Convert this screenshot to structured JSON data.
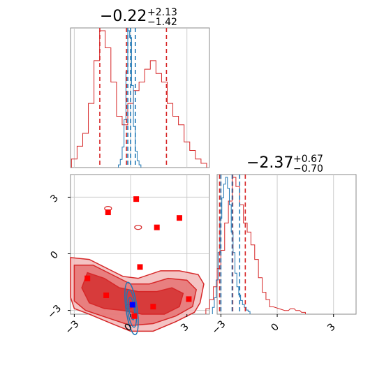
{
  "chart_data": {
    "type": "corner",
    "params": [
      {
        "title_value": "−0.22",
        "title_plus": "+2.13",
        "title_minus": "−1.42"
      },
      {
        "title_value": "−2.37",
        "title_plus": "+0.67",
        "title_minus": "−0.70"
      }
    ],
    "axis_range": [
      -3.2,
      4.2
    ],
    "tick_values": [
      -3,
      0,
      3
    ],
    "tick_labels": [
      "−3",
      "0",
      "3"
    ],
    "grid": true,
    "colors": {
      "red": "#d62728",
      "blue": "#1f77b4",
      "grid": "#cccccc",
      "frame": "#888888"
    },
    "diag1": {
      "red_hist": {
        "x": [
          -3.0,
          -2.7,
          -2.4,
          -2.1,
          -1.8,
          -1.5,
          -1.2,
          -0.9,
          -0.6,
          -0.3,
          0.0,
          0.3,
          0.6,
          0.9,
          1.2,
          1.5,
          1.8,
          2.1,
          2.4,
          2.7,
          3.0,
          3.3,
          3.6,
          3.9
        ],
        "y": [
          0.02,
          0.05,
          0.08,
          0.15,
          0.25,
          0.32,
          0.28,
          0.2,
          0.12,
          0.1,
          0.15,
          0.18,
          0.2,
          0.23,
          0.25,
          0.22,
          0.2,
          0.15,
          0.12,
          0.1,
          0.06,
          0.04,
          0.02,
          0.01
        ]
      },
      "blue_hist": {
        "x": [
          -0.6,
          -0.5,
          -0.4,
          -0.3,
          -0.2,
          -0.1,
          0.0,
          0.1,
          0.2,
          0.3,
          0.4,
          0.5
        ],
        "y": [
          0.02,
          0.06,
          0.15,
          0.35,
          0.7,
          1.0,
          0.95,
          0.6,
          0.3,
          0.12,
          0.05,
          0.02
        ]
      },
      "red_quantiles": [
        -1.64,
        -0.22,
        1.91
      ],
      "blue_quantiles": [
        -0.15,
        0.0,
        0.25
      ]
    },
    "diag2": {
      "red_hist": {
        "x": [
          -3.7,
          -3.5,
          -3.3,
          -3.1,
          -2.9,
          -2.7,
          -2.5,
          -2.3,
          -2.1,
          -1.9,
          -1.7,
          -1.5,
          -1.3,
          -1.1,
          -0.9,
          -0.7,
          -0.5,
          -0.3,
          0.5,
          0.8,
          1.1,
          1.4
        ],
        "y": [
          0.03,
          0.08,
          0.15,
          0.25,
          0.35,
          0.5,
          0.62,
          0.75,
          0.7,
          0.6,
          0.5,
          0.45,
          0.38,
          0.3,
          0.2,
          0.12,
          0.08,
          0.04,
          0.02,
          0.03,
          0.02,
          0.01
        ]
      },
      "blue_hist": {
        "x": [
          -3.4,
          -3.3,
          -3.2,
          -3.1,
          -3.0,
          -2.9,
          -2.8,
          -2.7,
          -2.6,
          -2.5,
          -2.4,
          -2.3,
          -2.2,
          -2.1,
          -2.0,
          -1.9,
          -1.8,
          -1.7,
          -1.6,
          -1.5
        ],
        "y": [
          0.05,
          0.12,
          0.25,
          0.45,
          0.7,
          0.85,
          0.95,
          1.0,
          0.92,
          0.8,
          0.6,
          0.45,
          0.3,
          0.2,
          0.14,
          0.1,
          0.07,
          0.05,
          0.03,
          0.02
        ]
      },
      "red_quantiles": [
        -3.07,
        -2.37,
        -1.7
      ],
      "blue_quantiles": [
        -3.0,
        -2.4,
        -2.0
      ]
    },
    "scatter": {
      "red_points": [
        [
          -1.2,
          2.2
        ],
        [
          0.3,
          2.9
        ],
        [
          2.6,
          1.9
        ],
        [
          1.4,
          1.4
        ],
        [
          -2.3,
          -1.3
        ],
        [
          0.5,
          -0.7
        ],
        [
          -1.3,
          -2.2
        ],
        [
          1.2,
          -2.8
        ],
        [
          3.1,
          -2.4
        ],
        [
          0.2,
          -3.3
        ]
      ],
      "blue_points": [
        [
          0.1,
          -2.7
        ]
      ],
      "red_contours": [
        {
          "level": "outer",
          "pts": [
            [
              -3.2,
              -0.2
            ],
            [
              -2.2,
              -0.3
            ],
            [
              -1.2,
              -0.8
            ],
            [
              -0.4,
              -1.2
            ],
            [
              0.4,
              -1.3
            ],
            [
              1.6,
              -0.9
            ],
            [
              2.6,
              -0.9
            ],
            [
              3.6,
              -1.1
            ],
            [
              3.9,
              -1.6
            ],
            [
              3.7,
              -2.6
            ],
            [
              3.4,
              -3.1
            ],
            [
              2.4,
              -3.6
            ],
            [
              1.2,
              -4.1
            ],
            [
              0.0,
              -4.1
            ],
            [
              -1.0,
              -3.7
            ],
            [
              -2.2,
              -3.2
            ],
            [
              -3.0,
              -2.9
            ],
            [
              -3.2,
              -2.3
            ]
          ]
        },
        {
          "level": "mid",
          "pts": [
            [
              -3.0,
              -0.6
            ],
            [
              -2.0,
              -0.6
            ],
            [
              -1.0,
              -1.1
            ],
            [
              0.0,
              -1.6
            ],
            [
              1.0,
              -1.6
            ],
            [
              2.0,
              -1.3
            ],
            [
              3.0,
              -1.4
            ],
            [
              3.5,
              -1.9
            ],
            [
              3.3,
              -2.8
            ],
            [
              2.4,
              -3.3
            ],
            [
              1.2,
              -3.7
            ],
            [
              0.0,
              -3.8
            ],
            [
              -1.2,
              -3.4
            ],
            [
              -2.4,
              -3.0
            ],
            [
              -3.0,
              -2.5
            ]
          ]
        },
        {
          "level": "inner",
          "pts": [
            [
              -2.3,
              -1.0
            ],
            [
              -1.4,
              -1.3
            ],
            [
              -0.6,
              -1.8
            ],
            [
              0.4,
              -2.0
            ],
            [
              1.4,
              -2.0
            ],
            [
              2.2,
              -1.8
            ],
            [
              2.8,
              -2.1
            ],
            [
              2.6,
              -2.8
            ],
            [
              1.8,
              -3.2
            ],
            [
              0.6,
              -3.2
            ],
            [
              -0.4,
              -3.0
            ],
            [
              -1.4,
              -2.9
            ],
            [
              -2.2,
              -2.6
            ],
            [
              -2.6,
              -1.8
            ]
          ]
        }
      ],
      "blue_contours": [
        {
          "cx": 0.05,
          "cy": -2.9,
          "rx": 0.3,
          "ry": 1.4
        },
        {
          "cx": 0.05,
          "cy": -2.9,
          "rx": 0.22,
          "ry": 1.0
        },
        {
          "cx": 0.05,
          "cy": -2.9,
          "rx": 0.14,
          "ry": 0.6
        }
      ],
      "small_blobs": [
        [
          -1.2,
          2.4
        ],
        [
          0.4,
          1.4
        ],
        [
          -0.1,
          -2.8
        ]
      ]
    }
  }
}
